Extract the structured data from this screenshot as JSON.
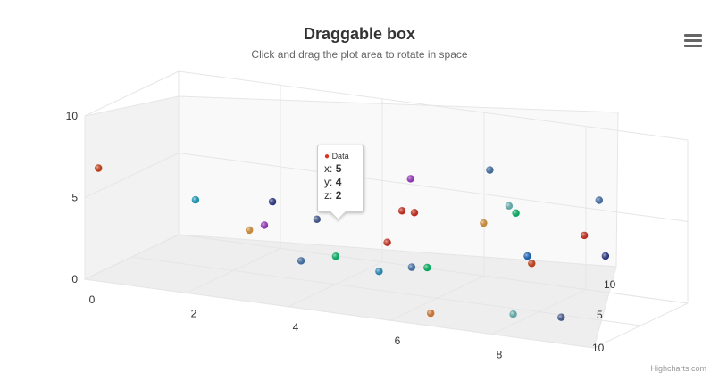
{
  "header": {
    "title": "Draggable box",
    "subtitle": "Click and drag the plot area to rotate in space"
  },
  "menu_icon": "hamburger-menu-icon",
  "credits": "Highcharts.com",
  "tooltip": {
    "series_name": "Data",
    "marker_color": "#e0301e",
    "x_label": "x:",
    "x_value": "5",
    "y_label": "y:",
    "y_value": "4",
    "z_label": "z:",
    "z_value": "2"
  },
  "chart_data": {
    "type": "scatter",
    "title": "Draggable box",
    "subtitle": "Click and drag the plot area to rotate in space",
    "xlim": [
      0,
      10
    ],
    "ylim": [
      0,
      10
    ],
    "zlim": [
      0,
      10
    ],
    "x_ticks": [
      "0",
      "2",
      "4",
      "6",
      "8",
      "10"
    ],
    "y_ticks": [
      "0",
      "5",
      "10"
    ],
    "z_ticks": [
      "5",
      "10"
    ],
    "grid": true,
    "legend": "none",
    "palette": [
      "#e0301e",
      "#2f7ed8",
      "#0d233a",
      "#8bbc21",
      "#910000",
      "#1aadce",
      "#492970",
      "#f28f43",
      "#77a1e5",
      "#c42525"
    ],
    "series": [
      {
        "name": "Data",
        "points": [
          [
            0.1,
            6.6,
            9.1,
            "#e0441a"
          ],
          [
            1.9,
            2.9,
            0.3,
            "#2f3d91"
          ],
          [
            1.4,
            4.3,
            5.8,
            "#1aadce"
          ],
          [
            2.2,
            2.4,
            4.4,
            "#f0a040"
          ],
          [
            2.9,
            3.6,
            6.6,
            "#ab39d7"
          ],
          [
            3.4,
            1.3,
            5.4,
            "#4a7dba"
          ],
          [
            3.8,
            6.9,
            4.4,
            "#2e9cd0"
          ],
          [
            4.1,
            1.9,
            5.5,
            "#00c86e"
          ],
          [
            4.3,
            5.1,
            8.6,
            "#4a63a0"
          ],
          [
            4.7,
            3.9,
            1.7,
            "#e0301e"
          ],
          [
            5.0,
            4.0,
            2.0,
            "#e0301e"
          ],
          [
            5.3,
            2.0,
            7.4,
            "#2e9cd0"
          ],
          [
            5.6,
            1.4,
            3.9,
            "#00c86e"
          ],
          [
            5.7,
            4.3,
            8.7,
            "#e0301e"
          ],
          [
            5.9,
            7.9,
            7.3,
            "#ab39d7"
          ],
          [
            6.4,
            3.4,
            9.9,
            "#4a7dba"
          ],
          [
            6.6,
            4.7,
            0.6,
            "#74c7c7"
          ],
          [
            6.7,
            0.6,
            9.5,
            "#f0883a"
          ],
          [
            7.2,
            8.6,
            5.9,
            "#4a7dba"
          ],
          [
            7.5,
            6.1,
            8.2,
            "#f0a040"
          ],
          [
            7.8,
            2.8,
            4.7,
            "#e0441a"
          ],
          [
            8.1,
            0.8,
            8.3,
            "#74c7c7"
          ],
          [
            8.3,
            7.3,
            9.1,
            "#00c86e"
          ],
          [
            8.6,
            4.9,
            9.5,
            "#1a70d0"
          ],
          [
            8.9,
            3.2,
            2.8,
            "#2f3d91"
          ],
          [
            9.3,
            1.5,
            9.7,
            "#4a63a0"
          ],
          [
            9.7,
            6.6,
            9.4,
            "#e0301e"
          ],
          [
            9.9,
            8.7,
            8.9,
            "#4a7dba"
          ]
        ]
      }
    ]
  }
}
